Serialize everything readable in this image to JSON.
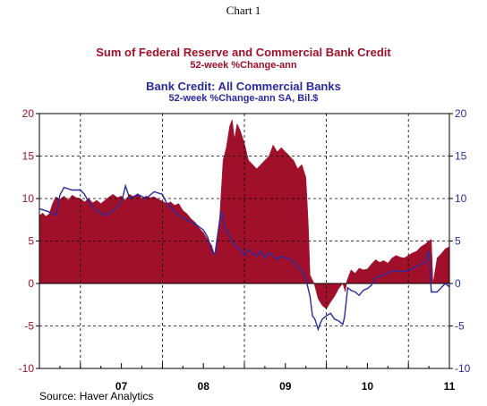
{
  "header": {
    "chart_label": "Chart 1",
    "title1": "Sum of Federal Reserve and Commercial Bank Credit",
    "subtitle1": "52-week %Change-ann",
    "title2": "Bank Credit: All Commercial Banks",
    "subtitle2": "52-week %Change-ann      SA, Bil.$"
  },
  "footer": {
    "source": "Source: Haver Analytics"
  },
  "colors": {
    "series1": "#a0102a",
    "series2": "#2a2aa0",
    "left_axis": "#a0102a",
    "right_axis": "#2a2aa0"
  },
  "chart_data": {
    "type": "area",
    "xlim": [
      2006.0,
      2011.0
    ],
    "ylim": [
      -10,
      20
    ],
    "y_ticks": [
      -10,
      -5,
      0,
      5,
      10,
      15,
      20
    ],
    "x_tick_labels": [
      "07",
      "08",
      "09",
      "10",
      "11"
    ],
    "x_tick_label_positions": [
      2007.0,
      2008.0,
      2009.0,
      2010.0,
      2011.0
    ],
    "x_gridlines": [
      2006.5,
      2007.5,
      2008.5,
      2009.5,
      2010.5
    ],
    "grid": true,
    "series": [
      {
        "type": "area",
        "points": [
          [
            2006.0,
            8.0
          ],
          [
            2006.04,
            8.3
          ],
          [
            2006.08,
            7.9
          ],
          [
            2006.12,
            8.2
          ],
          [
            2006.16,
            9.4
          ],
          [
            2006.2,
            10.2
          ],
          [
            2006.25,
            9.9
          ],
          [
            2006.3,
            10.3
          ],
          [
            2006.35,
            9.8
          ],
          [
            2006.4,
            10.4
          ],
          [
            2006.45,
            10.1
          ],
          [
            2006.5,
            10.0
          ],
          [
            2006.55,
            9.6
          ],
          [
            2006.6,
            10.0
          ],
          [
            2006.65,
            9.5
          ],
          [
            2006.7,
            9.8
          ],
          [
            2006.75,
            9.4
          ],
          [
            2006.8,
            9.8
          ],
          [
            2006.85,
            10.2
          ],
          [
            2006.9,
            10.5
          ],
          [
            2006.95,
            10.1
          ],
          [
            2007.0,
            10.3
          ],
          [
            2007.05,
            9.8
          ],
          [
            2007.1,
            10.5
          ],
          [
            2007.15,
            10.2
          ],
          [
            2007.2,
            10.6
          ],
          [
            2007.25,
            10.0
          ],
          [
            2007.3,
            10.3
          ],
          [
            2007.35,
            10.1
          ],
          [
            2007.4,
            10.2
          ],
          [
            2007.45,
            9.9
          ],
          [
            2007.5,
            9.7
          ],
          [
            2007.55,
            9.4
          ],
          [
            2007.6,
            9.6
          ],
          [
            2007.65,
            9.2
          ],
          [
            2007.7,
            9.4
          ],
          [
            2007.75,
            8.6
          ],
          [
            2007.8,
            8.2
          ],
          [
            2007.85,
            7.6
          ],
          [
            2007.9,
            7.2
          ],
          [
            2007.95,
            6.5
          ],
          [
            2008.0,
            6.0
          ],
          [
            2008.05,
            5.2
          ],
          [
            2008.1,
            4.5
          ],
          [
            2008.14,
            3.3
          ],
          [
            2008.16,
            4.5
          ],
          [
            2008.18,
            6.0
          ],
          [
            2008.2,
            8.0
          ],
          [
            2008.24,
            14.5
          ],
          [
            2008.28,
            16.0
          ],
          [
            2008.32,
            18.5
          ],
          [
            2008.35,
            19.3
          ],
          [
            2008.38,
            17.0
          ],
          [
            2008.41,
            18.8
          ],
          [
            2008.45,
            18.0
          ],
          [
            2008.5,
            16.5
          ],
          [
            2008.55,
            14.5
          ],
          [
            2008.6,
            14.0
          ],
          [
            2008.65,
            13.5
          ],
          [
            2008.7,
            14.0
          ],
          [
            2008.75,
            14.5
          ],
          [
            2008.8,
            15.0
          ],
          [
            2008.85,
            16.3
          ],
          [
            2008.9,
            15.5
          ],
          [
            2008.95,
            16.0
          ],
          [
            2009.0,
            15.5
          ],
          [
            2009.05,
            15.0
          ],
          [
            2009.1,
            14.5
          ],
          [
            2009.15,
            13.5
          ],
          [
            2009.2,
            14.0
          ],
          [
            2009.25,
            12.5
          ],
          [
            2009.28,
            7.0
          ],
          [
            2009.3,
            1.0
          ],
          [
            2009.35,
            0.0
          ],
          [
            2009.4,
            -1.8
          ],
          [
            2009.45,
            -2.6
          ],
          [
            2009.5,
            -3.0
          ],
          [
            2009.55,
            -2.2
          ],
          [
            2009.6,
            -1.5
          ],
          [
            2009.65,
            -0.6
          ],
          [
            2009.7,
            0.0
          ],
          [
            2009.73,
            -1.0
          ],
          [
            2009.75,
            0.3
          ],
          [
            2009.8,
            1.6
          ],
          [
            2009.85,
            1.2
          ],
          [
            2009.9,
            1.8
          ],
          [
            2009.95,
            1.6
          ],
          [
            2010.0,
            1.7
          ],
          [
            2010.05,
            2.3
          ],
          [
            2010.1,
            2.8
          ],
          [
            2010.15,
            2.5
          ],
          [
            2010.2,
            2.7
          ],
          [
            2010.25,
            2.4
          ],
          [
            2010.3,
            3.0
          ],
          [
            2010.35,
            3.3
          ],
          [
            2010.4,
            3.1
          ],
          [
            2010.45,
            3.0
          ],
          [
            2010.5,
            3.3
          ],
          [
            2010.55,
            3.6
          ],
          [
            2010.6,
            3.8
          ],
          [
            2010.65,
            4.3
          ],
          [
            2010.7,
            4.6
          ],
          [
            2010.75,
            5.0
          ],
          [
            2010.78,
            5.2
          ],
          [
            2010.8,
            0.0
          ],
          [
            2010.85,
            3.0
          ],
          [
            2010.9,
            3.5
          ],
          [
            2010.95,
            4.1
          ],
          [
            2011.0,
            4.3
          ]
        ]
      },
      {
        "type": "line",
        "points": [
          [
            2006.0,
            8.8
          ],
          [
            2006.1,
            8.5
          ],
          [
            2006.2,
            8.0
          ],
          [
            2006.25,
            10.4
          ],
          [
            2006.3,
            11.3
          ],
          [
            2006.4,
            11.0
          ],
          [
            2006.5,
            11.0
          ],
          [
            2006.55,
            10.5
          ],
          [
            2006.6,
            9.6
          ],
          [
            2006.7,
            8.6
          ],
          [
            2006.8,
            8.0
          ],
          [
            2006.9,
            8.6
          ],
          [
            2007.0,
            9.5
          ],
          [
            2007.05,
            11.5
          ],
          [
            2007.1,
            10.0
          ],
          [
            2007.2,
            10.5
          ],
          [
            2007.3,
            10.0
          ],
          [
            2007.4,
            10.8
          ],
          [
            2007.5,
            10.5
          ],
          [
            2007.55,
            9.5
          ],
          [
            2007.6,
            9.0
          ],
          [
            2007.7,
            8.0
          ],
          [
            2007.8,
            7.5
          ],
          [
            2007.9,
            7.0
          ],
          [
            2008.0,
            6.3
          ],
          [
            2008.05,
            5.5
          ],
          [
            2008.1,
            4.0
          ],
          [
            2008.14,
            3.4
          ],
          [
            2008.17,
            5.5
          ],
          [
            2008.2,
            7.5
          ],
          [
            2008.22,
            8.5
          ],
          [
            2008.26,
            6.5
          ],
          [
            2008.3,
            6.0
          ],
          [
            2008.35,
            5.0
          ],
          [
            2008.4,
            4.3
          ],
          [
            2008.45,
            4.0
          ],
          [
            2008.5,
            3.3
          ],
          [
            2008.55,
            4.0
          ],
          [
            2008.6,
            3.5
          ],
          [
            2008.65,
            3.2
          ],
          [
            2008.7,
            3.8
          ],
          [
            2008.75,
            3.0
          ],
          [
            2008.8,
            3.6
          ],
          [
            2008.85,
            3.3
          ],
          [
            2008.9,
            2.8
          ],
          [
            2008.95,
            3.2
          ],
          [
            2009.0,
            3.0
          ],
          [
            2009.05,
            2.9
          ],
          [
            2009.1,
            2.5
          ],
          [
            2009.15,
            2.0
          ],
          [
            2009.2,
            1.5
          ],
          [
            2009.25,
            0.5
          ],
          [
            2009.3,
            -1.5
          ],
          [
            2009.33,
            -3.8
          ],
          [
            2009.36,
            -4.2
          ],
          [
            2009.4,
            -5.4
          ],
          [
            2009.42,
            -4.8
          ],
          [
            2009.45,
            -4.2
          ],
          [
            2009.5,
            -3.8
          ],
          [
            2009.55,
            -3.5
          ],
          [
            2009.6,
            -4.2
          ],
          [
            2009.65,
            -4.4
          ],
          [
            2009.7,
            -4.8
          ],
          [
            2009.72,
            -4.0
          ],
          [
            2009.76,
            -0.5
          ],
          [
            2009.8,
            -0.8
          ],
          [
            2009.85,
            -1.0
          ],
          [
            2009.9,
            -1.4
          ],
          [
            2009.95,
            -0.8
          ],
          [
            2010.0,
            -0.6
          ],
          [
            2010.05,
            -0.2
          ],
          [
            2010.1,
            0.7
          ],
          [
            2010.2,
            1.0
          ],
          [
            2010.3,
            1.5
          ],
          [
            2010.4,
            1.4
          ],
          [
            2010.5,
            1.5
          ],
          [
            2010.6,
            2.0
          ],
          [
            2010.7,
            2.5
          ],
          [
            2010.75,
            3.8
          ],
          [
            2010.78,
            -1.0
          ],
          [
            2010.85,
            -1.0
          ],
          [
            2010.9,
            -0.5
          ],
          [
            2010.95,
            0.0
          ],
          [
            2011.0,
            -0.4
          ]
        ]
      }
    ]
  }
}
